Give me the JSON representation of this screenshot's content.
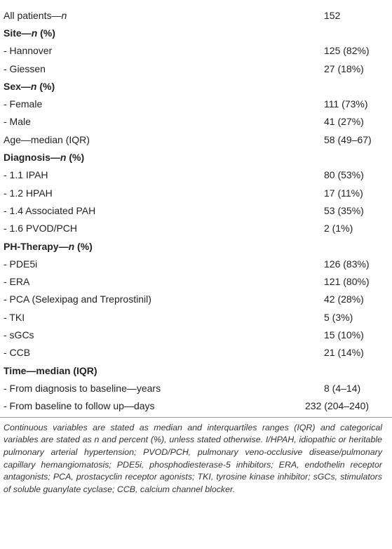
{
  "table": {
    "rows": [
      {
        "label": [
          "All patients—",
          "n"
        ],
        "value": "152"
      },
      {
        "label": [
          "Site—",
          "n",
          " (%)"
        ]
      },
      {
        "label": [
          "- Hannover"
        ],
        "value": "125 (82%)"
      },
      {
        "label": [
          "- Giessen"
        ],
        "value": "27 (18%)"
      },
      {
        "label": [
          "Sex—",
          "n",
          " (%)"
        ]
      },
      {
        "label": [
          "- Female"
        ],
        "value": "111 (73%)"
      },
      {
        "label": [
          "- Male"
        ],
        "value": "41 (27%)"
      },
      {
        "label": [
          "Age—median (IQR)"
        ],
        "value": "58 (49–67)"
      },
      {
        "label": [
          "Diagnosis—",
          "n",
          " (%)"
        ]
      },
      {
        "label": [
          "- 1.1 IPAH"
        ],
        "value": "80 (53%)"
      },
      {
        "label": [
          "- 1.2 HPAH"
        ],
        "value": "17 (11%)"
      },
      {
        "label": [
          "- 1.4 Associated PAH"
        ],
        "value": "53 (35%)"
      },
      {
        "label": [
          "- 1.6 PVOD/PCH"
        ],
        "value": "2 (1%)"
      },
      {
        "label": [
          "PH-Therapy—",
          "n",
          " (%)"
        ]
      },
      {
        "label": [
          "- PDE5i"
        ],
        "value": "126 (83%)"
      },
      {
        "label": [
          "- ERA"
        ],
        "value": "121 (80%)"
      },
      {
        "label": [
          "- PCA (Selexipag and Treprostinil)"
        ],
        "value": "42 (28%)"
      },
      {
        "label": [
          "- TKI"
        ],
        "value": "5 (3%)"
      },
      {
        "label": [
          "- sGCs"
        ],
        "value": "15 (10%)"
      },
      {
        "label": [
          "- CCB"
        ],
        "value": "21 (14%)"
      },
      {
        "label": [
          "Time—median (IQR)"
        ]
      },
      {
        "label": [
          "- From diagnosis to baseline—years"
        ],
        "value": "8 (4–14)"
      },
      {
        "label": [
          "- From baseline to follow up—days"
        ],
        "value": "232 (204–240)"
      }
    ]
  },
  "footnote": "Continuous variables are stated as median and interquartiles ranges (IQR) and categorical variables are stated as n and percent (%), unless stated otherwise. I/HPAH, idiopathic or heritable pulmonary arterial hypertension; PVOD/PCH, pulmonary veno-occlusive disease/pulmonary capillary hemangiomatosis; PDE5i, phosphodiesterase-5 inhibitors; ERA, endothelin receptor antagonists; PCA, prostacyclin receptor agonists; TKI, tyrosine kinase inhibitor; sGCs, stimulators of soluble guanylate cyclase; CCB, calcium channel blocker."
}
